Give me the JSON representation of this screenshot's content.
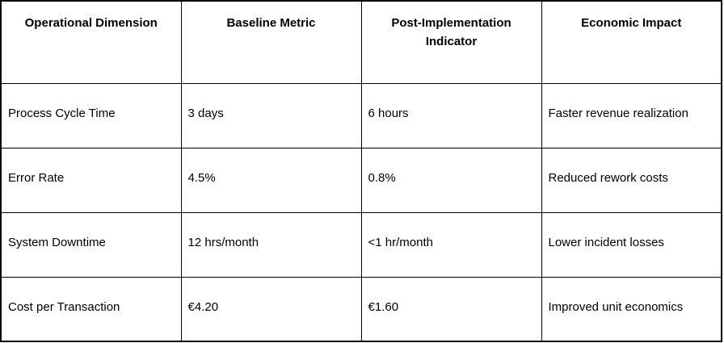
{
  "table": {
    "headers": [
      "Operational Dimension",
      "Baseline Metric",
      "Post-Implementation Indicator",
      "Economic Impact"
    ],
    "rows": [
      [
        "Process Cycle Time",
        "3 days",
        "6 hours",
        "Faster revenue realization"
      ],
      [
        "Error Rate",
        "4.5%",
        "0.8%",
        "Reduced rework costs"
      ],
      [
        "System Downtime",
        "12 hrs/month",
        "<1 hr/month",
        "Lower incident losses"
      ],
      [
        "Cost per Transaction",
        "€4.20",
        "€1.60",
        "Improved unit economics"
      ]
    ]
  }
}
